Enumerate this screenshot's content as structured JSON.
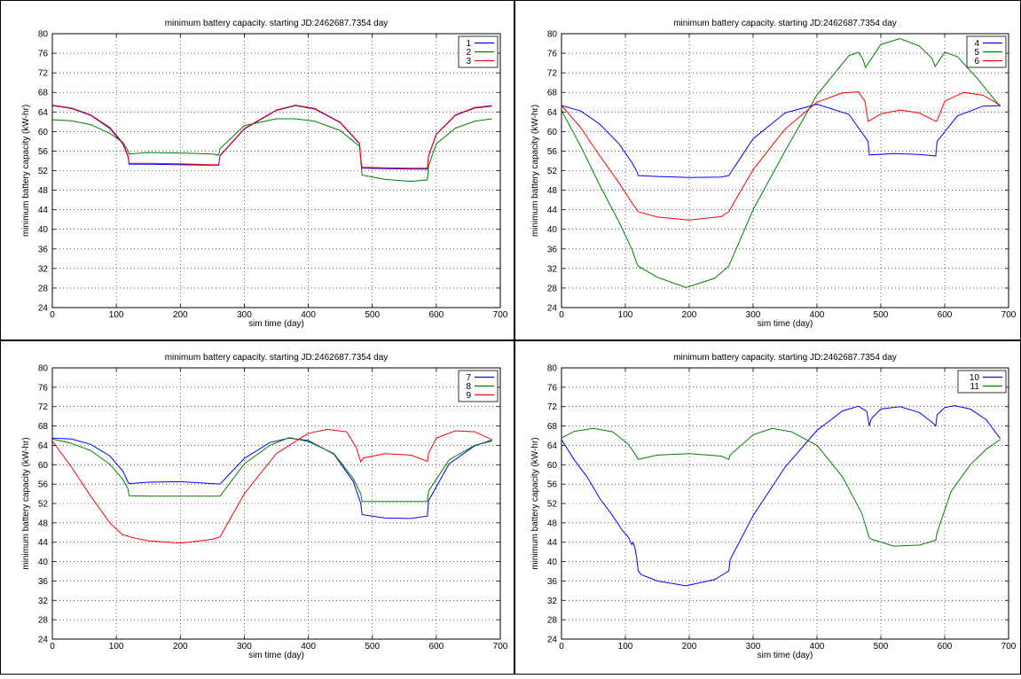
{
  "chart_data": [
    {
      "type": "line",
      "title": "minimum battery capacity. starting JD:2462687.7354 day",
      "xlabel": "sim time (day)",
      "ylabel": "minimum battery capacity (kW-hr)",
      "xlim": [
        0,
        700
      ],
      "ylim": [
        24,
        80
      ],
      "xticks": [
        0,
        100,
        200,
        300,
        400,
        500,
        600,
        700
      ],
      "yticks": [
        24,
        28,
        32,
        36,
        40,
        44,
        48,
        52,
        56,
        60,
        64,
        68,
        72,
        76,
        80
      ],
      "grid": true,
      "legend_position": "top-right",
      "series": [
        {
          "name": "1",
          "color": "#0000ff",
          "x": [
            0,
            30,
            60,
            90,
            110,
            118,
            120,
            150,
            200,
            250,
            260,
            262,
            300,
            350,
            380,
            410,
            450,
            480,
            482,
            484,
            520,
            560,
            586,
            588,
            600,
            630,
            660,
            687
          ],
          "y": [
            65.3,
            64.7,
            63.3,
            60.6,
            57.5,
            55,
            53.3,
            53.3,
            53.2,
            53.1,
            53.1,
            55,
            60.5,
            64.3,
            65.3,
            64.6,
            61.8,
            57.5,
            54.3,
            52.5,
            52.4,
            52.3,
            52.3,
            55,
            59.4,
            63.3,
            64.8,
            65.2
          ]
        },
        {
          "name": "2",
          "color": "#008000",
          "x": [
            0,
            30,
            60,
            90,
            110,
            118,
            120,
            150,
            200,
            250,
            260,
            262,
            300,
            350,
            380,
            410,
            450,
            480,
            482,
            484,
            520,
            560,
            586,
            588,
            600,
            630,
            660,
            687
          ],
          "y": [
            62.4,
            62.2,
            61.4,
            59.6,
            57.8,
            56.2,
            55.4,
            55.7,
            55.6,
            55.4,
            55.2,
            56.5,
            61.2,
            62.6,
            62.6,
            62.1,
            60.2,
            57,
            54.2,
            51.1,
            50.2,
            49.8,
            50.1,
            53,
            57.5,
            60.7,
            62.1,
            62.6
          ]
        },
        {
          "name": "3",
          "color": "#ff0000",
          "x": [
            0,
            30,
            60,
            90,
            110,
            118,
            120,
            150,
            200,
            250,
            260,
            262,
            300,
            350,
            380,
            410,
            450,
            480,
            482,
            484,
            520,
            560,
            586,
            588,
            600,
            630,
            660,
            687
          ],
          "y": [
            65.4,
            64.8,
            63.4,
            60.8,
            57.7,
            55.2,
            53.5,
            53.5,
            53.4,
            53.2,
            53.2,
            55.1,
            60.6,
            64.4,
            65.4,
            64.7,
            61.9,
            57.6,
            54.5,
            52.7,
            52.6,
            52.5,
            52.5,
            55.1,
            59.5,
            63.4,
            64.9,
            65.3
          ]
        }
      ]
    },
    {
      "type": "line",
      "title": "minimum battery capacity. starting JD:2462687.7354 day",
      "xlabel": "sim time (day)",
      "ylabel": "minimum battery capacity (kW-hr)",
      "xlim": [
        0,
        700
      ],
      "ylim": [
        24,
        80
      ],
      "xticks": [
        0,
        100,
        200,
        300,
        400,
        500,
        600,
        700
      ],
      "yticks": [
        24,
        28,
        32,
        36,
        40,
        44,
        48,
        52,
        56,
        60,
        64,
        68,
        72,
        76,
        80
      ],
      "grid": true,
      "legend_position": "top-right",
      "series": [
        {
          "name": "4",
          "color": "#0000ff",
          "x": [
            0,
            30,
            60,
            90,
            110,
            118,
            120,
            150,
            200,
            250,
            262,
            300,
            350,
            400,
            450,
            480,
            482,
            520,
            560,
            586,
            588,
            620,
            660,
            687
          ],
          "y": [
            65.3,
            64.2,
            61.5,
            57.5,
            53.7,
            51.8,
            51,
            50.8,
            50.6,
            50.7,
            51,
            58.5,
            63.8,
            65.6,
            63.5,
            58,
            55.2,
            55.5,
            55.3,
            55,
            58,
            63.2,
            65.2,
            65.3
          ]
        },
        {
          "name": "5",
          "color": "#008000",
          "x": [
            0,
            30,
            60,
            90,
            110,
            118,
            120,
            150,
            195,
            240,
            262,
            300,
            350,
            400,
            450,
            465,
            472,
            476,
            500,
            530,
            560,
            580,
            585,
            600,
            620,
            650,
            687
          ],
          "y": [
            64.3,
            57,
            49,
            41.5,
            36,
            33,
            32.5,
            30.2,
            28.1,
            30,
            32.5,
            44,
            56,
            67.5,
            75.5,
            76.2,
            74.8,
            73.1,
            77.8,
            79,
            77.5,
            75,
            73.3,
            76.2,
            75.3,
            71,
            65.1
          ]
        },
        {
          "name": "6",
          "color": "#ff0000",
          "x": [
            0,
            30,
            60,
            90,
            110,
            118,
            120,
            150,
            200,
            250,
            262,
            300,
            350,
            400,
            440,
            465,
            475,
            480,
            482,
            500,
            530,
            560,
            586,
            588,
            600,
            630,
            660,
            687
          ],
          "y": [
            65.3,
            60.8,
            55,
            49.5,
            45.5,
            44,
            43.6,
            42.5,
            41.9,
            42.6,
            43.6,
            52.2,
            60.5,
            66,
            67.9,
            68.1,
            66.2,
            62.1,
            62.2,
            63.6,
            64.4,
            63.8,
            62.1,
            62.2,
            66.2,
            68,
            67.4,
            65.4
          ]
        }
      ]
    },
    {
      "type": "line",
      "title": "minimum battery capacity. starting JD:2462687.7354 day",
      "xlabel": "sim time (day)",
      "ylabel": "minimum battery capacity (kW-hr)",
      "xlim": [
        0,
        700
      ],
      "ylim": [
        24,
        80
      ],
      "xticks": [
        0,
        100,
        200,
        300,
        400,
        500,
        600,
        700
      ],
      "yticks": [
        24,
        28,
        32,
        36,
        40,
        44,
        48,
        52,
        56,
        60,
        64,
        68,
        72,
        76,
        80
      ],
      "grid": true,
      "legend_position": "top-right",
      "series": [
        {
          "name": "7",
          "color": "#0000ff",
          "x": [
            0,
            30,
            60,
            90,
            110,
            118,
            120,
            150,
            200,
            250,
            262,
            300,
            340,
            370,
            400,
            440,
            470,
            482,
            484,
            520,
            560,
            586,
            588,
            620,
            660,
            687
          ],
          "y": [
            65.5,
            65.3,
            64.2,
            61.8,
            58.7,
            56.5,
            56.1,
            56.4,
            56.5,
            56.1,
            56,
            61.3,
            64.6,
            65.5,
            65,
            62.2,
            56.6,
            52,
            49.7,
            49,
            48.9,
            49.4,
            52.6,
            60.2,
            63.9,
            65.1
          ]
        },
        {
          "name": "8",
          "color": "#008000",
          "x": [
            0,
            30,
            60,
            90,
            110,
            118,
            120,
            150,
            200,
            250,
            262,
            300,
            340,
            370,
            400,
            440,
            470,
            482,
            484,
            520,
            560,
            586,
            588,
            620,
            660,
            687
          ],
          "y": [
            65.3,
            64.4,
            62.9,
            60.1,
            57,
            55.1,
            53.6,
            53.5,
            53.5,
            53.5,
            53.5,
            60.2,
            64,
            65.6,
            64.8,
            62.3,
            57.2,
            54,
            52.4,
            52.4,
            52.4,
            52.4,
            54.6,
            61,
            64,
            64.9
          ]
        },
        {
          "name": "9",
          "color": "#ff0000",
          "x": [
            0,
            30,
            60,
            90,
            110,
            118,
            120,
            150,
            200,
            250,
            262,
            300,
            350,
            400,
            430,
            460,
            475,
            482,
            486,
            520,
            560,
            586,
            588,
            600,
            630,
            660,
            687
          ],
          "y": [
            64.9,
            59.5,
            53.5,
            48,
            45.5,
            45.3,
            45.1,
            44.3,
            43.8,
            44.6,
            45.1,
            54,
            62.3,
            66.5,
            67.3,
            66.8,
            63.5,
            60.6,
            61.4,
            62.3,
            62,
            60.7,
            62.4,
            65.5,
            67,
            66.8,
            65.2
          ]
        }
      ]
    },
    {
      "type": "line",
      "title": "minimum battery capacity. starting JD:2462687.7354 day",
      "xlabel": "sim time (day)",
      "ylabel": "minimum battery capacity (kW-hr)",
      "xlim": [
        0,
        700
      ],
      "ylim": [
        24,
        80
      ],
      "xticks": [
        0,
        100,
        200,
        300,
        400,
        500,
        600,
        700
      ],
      "yticks": [
        24,
        28,
        32,
        36,
        40,
        44,
        48,
        52,
        56,
        60,
        64,
        68,
        72,
        76,
        80
      ],
      "grid": true,
      "legend_position": "top-right",
      "series": [
        {
          "name": "10",
          "color": "#0000ff",
          "x": [
            0,
            20,
            40,
            60,
            80,
            95,
            105,
            110,
            112,
            115,
            118,
            120,
            125,
            150,
            195,
            240,
            262,
            264,
            300,
            350,
            400,
            440,
            465,
            478,
            482,
            485,
            500,
            530,
            560,
            580,
            586,
            588,
            600,
            615,
            640,
            665,
            687
          ],
          "y": [
            65.2,
            61,
            57.5,
            53,
            49.5,
            46.5,
            45,
            43.5,
            44,
            42.8,
            40.5,
            38.1,
            37.3,
            36,
            35,
            36.3,
            38.1,
            40.4,
            49.5,
            59.5,
            67.1,
            71.1,
            72.1,
            71,
            68,
            69.5,
            71.5,
            72,
            70.8,
            68.8,
            68,
            70.3,
            71.8,
            72.2,
            71.5,
            69.3,
            65.4
          ]
        },
        {
          "name": "11",
          "color": "#008000",
          "x": [
            0,
            20,
            50,
            80,
            105,
            118,
            120,
            150,
            200,
            250,
            262,
            264,
            300,
            330,
            360,
            400,
            440,
            470,
            482,
            486,
            520,
            560,
            586,
            588,
            610,
            640,
            665,
            687
          ],
          "y": [
            65.5,
            66.9,
            67.5,
            66.8,
            64.2,
            61.6,
            61.1,
            62,
            62.3,
            61.8,
            61.1,
            62,
            66.2,
            67.5,
            66.8,
            64,
            57.5,
            50,
            44.9,
            44.6,
            43.2,
            43.4,
            44.4,
            46,
            54.5,
            60,
            63.2,
            65.2
          ]
        }
      ]
    }
  ]
}
